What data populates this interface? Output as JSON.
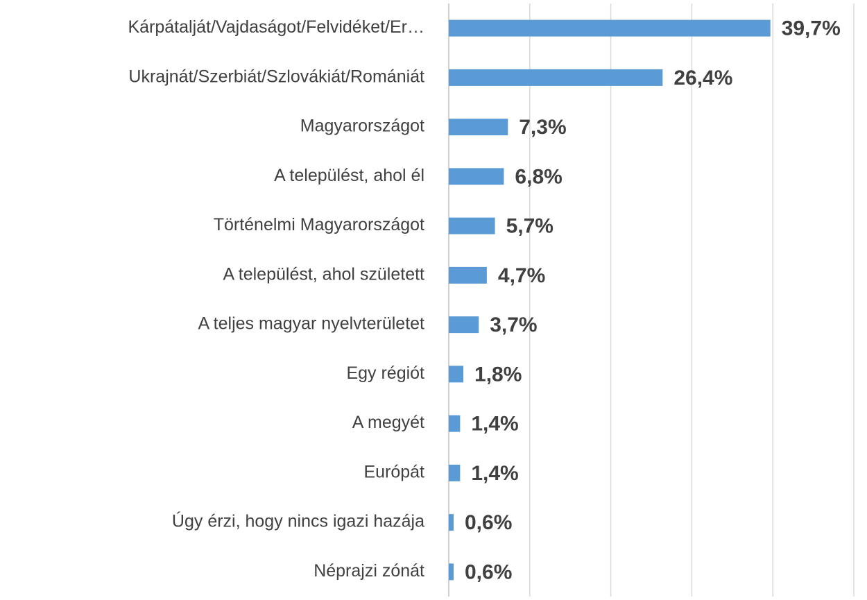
{
  "chart_data": {
    "type": "bar",
    "orientation": "horizontal",
    "categories": [
      "Kárpátalját/Vajdaságot/Felvidéket/Er…",
      "Ukrajnát/Szerbiát/Szlovákiát/Romániát",
      "Magyarországot",
      "A települést, ahol él",
      "Történelmi Magyarországot",
      "A települést, ahol született",
      "A teljes magyar nyelvterületet",
      "Egy régiót",
      "A megyét",
      "Európát",
      "Úgy érzi, hogy nincs igazi hazája",
      "Néprajzi zónát"
    ],
    "values": [
      39.7,
      26.4,
      7.3,
      6.8,
      5.7,
      4.7,
      3.7,
      1.8,
      1.4,
      1.4,
      0.6,
      0.6
    ],
    "value_labels": [
      "39,7%",
      "26,4%",
      "7,3%",
      "6,8%",
      "5,7%",
      "4,7%",
      "3,7%",
      "1,8%",
      "1,4%",
      "1,4%",
      "0,6%",
      "0,6%"
    ],
    "color": "#5b9bd5",
    "xlim": [
      0,
      50
    ],
    "xticks": [
      0,
      10,
      20,
      30,
      40,
      50
    ],
    "grid": true
  }
}
